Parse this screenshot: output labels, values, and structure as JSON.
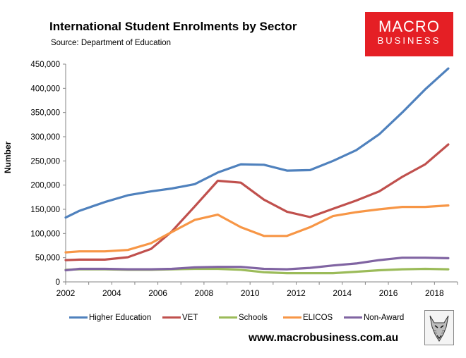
{
  "header": {
    "title": "International Student Enrolments by Sector",
    "subtitle": "Source: Department of Education"
  },
  "logo": {
    "line1": "MACRO",
    "line2": "BUSINESS",
    "color": "#e51f25"
  },
  "footer": {
    "website": "www.macrobusiness.com.au"
  },
  "chart_data": {
    "type": "line",
    "title": "International Student Enrolments by Sector",
    "subtitle": "Source: Department of Education",
    "ylabel": "Number",
    "xlabel": "",
    "xlim": [
      2002,
      2019
    ],
    "ylim": [
      0,
      450000
    ],
    "xticks": [
      2002,
      2004,
      2006,
      2008,
      2010,
      2012,
      2014,
      2016,
      2018
    ],
    "yticks": [
      0,
      50000,
      100000,
      150000,
      200000,
      250000,
      300000,
      350000,
      400000,
      450000
    ],
    "ytick_labels": [
      "0",
      "50,000",
      "100,000",
      "150,000",
      "200,000",
      "250,000",
      "300,000",
      "350,000",
      "400,000",
      "450,000"
    ],
    "grid": false,
    "legend_position": "bottom",
    "x": [
      2002,
      2002.6,
      2003.7,
      2004.7,
      2005.7,
      2006.6,
      2007.6,
      2008.6,
      2009.6,
      2010.6,
      2011.6,
      2012.6,
      2013.6,
      2014.6,
      2015.6,
      2016.6,
      2017.6,
      2018.6
    ],
    "series": [
      {
        "name": "Higher Education",
        "color": "#4f81bd",
        "values": [
          133000,
          147000,
          165000,
          179000,
          187000,
          193000,
          202000,
          226000,
          243000,
          242000,
          230000,
          231000,
          250000,
          272000,
          305000,
          350000,
          398000,
          441000
        ]
      },
      {
        "name": "VET",
        "color": "#c0504d",
        "values": [
          45000,
          46000,
          46000,
          51000,
          68000,
          104000,
          156000,
          209000,
          205000,
          170000,
          145000,
          134000,
          151000,
          168000,
          187000,
          217000,
          243000,
          284000
        ]
      },
      {
        "name": "Schools",
        "color": "#9bbb59",
        "values": [
          25000,
          26000,
          26000,
          25000,
          25000,
          26000,
          27000,
          27000,
          25000,
          20000,
          18000,
          18000,
          18000,
          21000,
          24000,
          26000,
          27000,
          26000
        ]
      },
      {
        "name": "ELICOS",
        "color": "#f79646",
        "values": [
          61000,
          63000,
          63000,
          66000,
          80000,
          103000,
          128000,
          139000,
          113000,
          95000,
          95000,
          113000,
          136000,
          144000,
          150000,
          155000,
          155000,
          158000
        ]
      },
      {
        "name": "Non-Award",
        "color": "#8064a2",
        "values": [
          24000,
          27000,
          27000,
          26000,
          26000,
          27000,
          30000,
          31000,
          31000,
          27000,
          26000,
          29000,
          34000,
          38000,
          45000,
          50000,
          50000,
          49000
        ]
      }
    ]
  }
}
